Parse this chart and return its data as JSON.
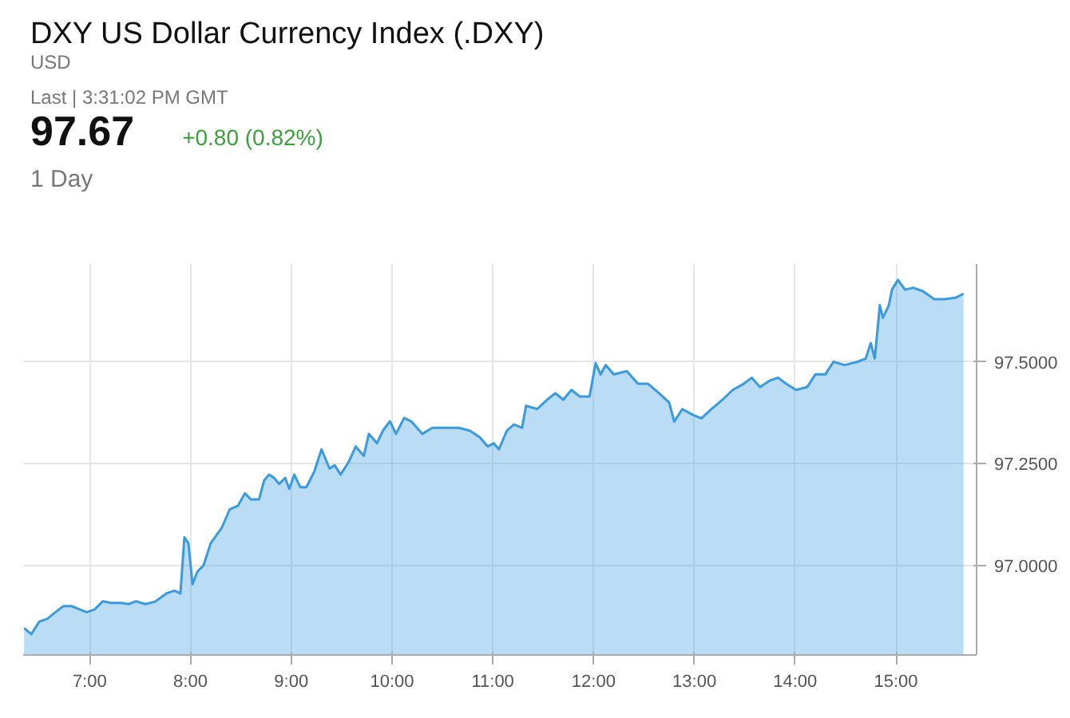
{
  "chart_data": {
    "type": "area",
    "title": "DXY US Dollar Currency Index (.DXY)",
    "subtitle": "USD",
    "annotations": [
      "Last | 3:31:02 PM GMT",
      "97.67",
      "+0.80 (0.82%)",
      "1 Day"
    ],
    "xlim": [
      6.34,
      15.8
    ],
    "ylim": [
      96.78,
      97.74
    ],
    "xticks": [
      {
        "value": 7,
        "label": "7:00"
      },
      {
        "value": 8,
        "label": "8:00"
      },
      {
        "value": 9,
        "label": "9:00"
      },
      {
        "value": 10,
        "label": "10:00"
      },
      {
        "value": 11,
        "label": "11:00"
      },
      {
        "value": 12,
        "label": "12:00"
      },
      {
        "value": 13,
        "label": "13:00"
      },
      {
        "value": 14,
        "label": "14:00"
      },
      {
        "value": 15,
        "label": "15:00"
      }
    ],
    "yticks": [
      {
        "value": 97.0,
        "label": "97.0000"
      },
      {
        "value": 97.25,
        "label": "97.2500"
      },
      {
        "value": 97.5,
        "label": "97.5000"
      }
    ],
    "grid": true,
    "series": [
      {
        "color": "#3a9ae0",
        "x": [
          6.35,
          6.42,
          6.5,
          6.58,
          6.66,
          6.74,
          6.82,
          6.9,
          6.97,
          7.05,
          7.13,
          7.21,
          7.31,
          7.39,
          7.46,
          7.55,
          7.65,
          7.76,
          7.84,
          7.9,
          7.94,
          7.98,
          8.02,
          8.07,
          8.13,
          8.2,
          8.31,
          8.39,
          8.47,
          8.54,
          8.6,
          8.68,
          8.73,
          8.78,
          8.83,
          8.88,
          8.94,
          8.98,
          9.03,
          9.09,
          9.15,
          9.23,
          9.3,
          9.38,
          9.43,
          9.49,
          9.57,
          9.64,
          9.72,
          9.77,
          9.85,
          9.91,
          9.98,
          10.04,
          10.12,
          10.19,
          10.3,
          10.4,
          10.51,
          10.66,
          10.77,
          10.87,
          10.95,
          11.01,
          11.06,
          11.14,
          11.21,
          11.29,
          11.33,
          11.44,
          11.54,
          11.62,
          11.7,
          11.78,
          11.86,
          11.96,
          12.02,
          12.07,
          12.12,
          12.2,
          12.33,
          12.44,
          12.54,
          12.65,
          12.75,
          12.8,
          12.88,
          12.99,
          13.07,
          13.17,
          13.28,
          13.38,
          13.49,
          13.57,
          13.65,
          13.75,
          13.83,
          13.91,
          14.01,
          14.12,
          14.2,
          14.3,
          14.38,
          14.49,
          14.62,
          14.7,
          14.75,
          14.79,
          14.84,
          14.87,
          14.93,
          14.96,
          15.02,
          15.09,
          15.17,
          15.27,
          15.38,
          15.48,
          15.59,
          15.67
        ],
        "values": [
          96.846,
          96.831,
          96.862,
          96.869,
          96.885,
          96.9,
          96.9,
          96.892,
          96.885,
          96.892,
          96.912,
          96.908,
          96.908,
          96.905,
          96.912,
          96.905,
          96.911,
          96.931,
          96.938,
          96.931,
          97.069,
          97.054,
          96.954,
          96.985,
          97.0,
          97.054,
          97.092,
          97.138,
          97.146,
          97.177,
          97.162,
          97.162,
          97.208,
          97.223,
          97.215,
          97.2,
          97.215,
          97.188,
          97.223,
          97.192,
          97.192,
          97.231,
          97.285,
          97.238,
          97.246,
          97.223,
          97.254,
          97.292,
          97.269,
          97.323,
          97.3,
          97.331,
          97.354,
          97.323,
          97.362,
          97.354,
          97.323,
          97.338,
          97.338,
          97.338,
          97.331,
          97.315,
          97.292,
          97.3,
          97.285,
          97.331,
          97.346,
          97.338,
          97.392,
          97.384,
          97.407,
          97.423,
          97.407,
          97.431,
          97.415,
          97.415,
          97.497,
          97.469,
          97.492,
          97.469,
          97.477,
          97.446,
          97.446,
          97.423,
          97.4,
          97.353,
          97.384,
          97.369,
          97.361,
          97.384,
          97.407,
          97.431,
          97.446,
          97.461,
          97.438,
          97.454,
          97.461,
          97.446,
          97.431,
          97.438,
          97.469,
          97.469,
          97.5,
          97.492,
          97.5,
          97.508,
          97.546,
          97.508,
          97.639,
          97.608,
          97.639,
          97.677,
          97.701,
          97.677,
          97.682,
          97.673,
          97.654,
          97.654,
          97.657,
          97.667
        ]
      }
    ]
  }
}
